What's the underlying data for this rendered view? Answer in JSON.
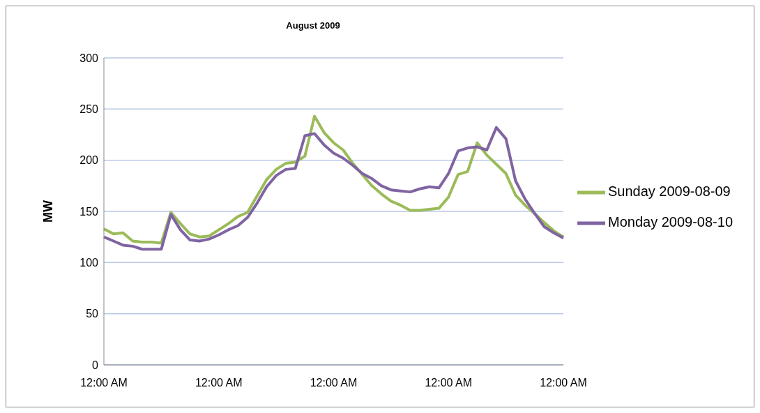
{
  "chart_data": {
    "type": "line",
    "title": "August 2009",
    "ylabel": "MW",
    "categories": [
      "12:00 AM",
      null,
      null,
      null,
      null,
      null,
      null,
      null,
      null,
      null,
      null,
      null,
      "12:00 AM",
      null,
      null,
      null,
      null,
      null,
      null,
      null,
      null,
      null,
      null,
      null,
      "12:00 AM",
      null,
      null,
      null,
      null,
      null,
      null,
      null,
      null,
      null,
      null,
      null,
      "12:00 AM",
      null,
      null,
      null,
      null,
      null,
      null,
      null,
      null,
      null,
      null,
      null,
      "12:00 AM"
    ],
    "series": [
      {
        "name": "Sunday 2009-08-09",
        "color": "#9bbb59",
        "values": [
          133,
          128,
          129,
          121,
          120,
          120,
          119,
          149,
          138,
          128,
          125,
          126,
          132,
          138,
          145,
          149,
          165,
          181,
          191,
          197,
          198,
          204,
          243,
          227,
          217,
          210,
          197,
          186,
          175,
          167,
          160,
          156,
          151,
          151,
          152,
          153,
          164,
          186,
          189,
          217,
          205,
          196,
          187,
          166,
          156,
          148,
          139,
          131,
          125
        ]
      },
      {
        "name": "Monday 2009-08-10",
        "color": "#8064a2",
        "values": [
          125,
          121,
          117,
          116,
          113,
          113,
          113,
          147,
          132,
          122,
          121,
          123,
          127,
          132,
          136,
          144,
          158,
          174,
          185,
          191,
          192,
          224,
          226,
          215,
          207,
          202,
          195,
          187,
          182,
          175,
          171,
          170,
          169,
          172,
          174,
          173,
          187,
          209,
          212,
          213,
          210,
          232,
          221,
          180,
          162,
          148,
          135,
          129,
          124
        ]
      }
    ],
    "ylim": [
      0,
      300
    ],
    "yticks": [
      0,
      50,
      100,
      150,
      200,
      250,
      300
    ],
    "grid": "y",
    "legend": "right",
    "marker": "none",
    "line_style": "solid"
  }
}
